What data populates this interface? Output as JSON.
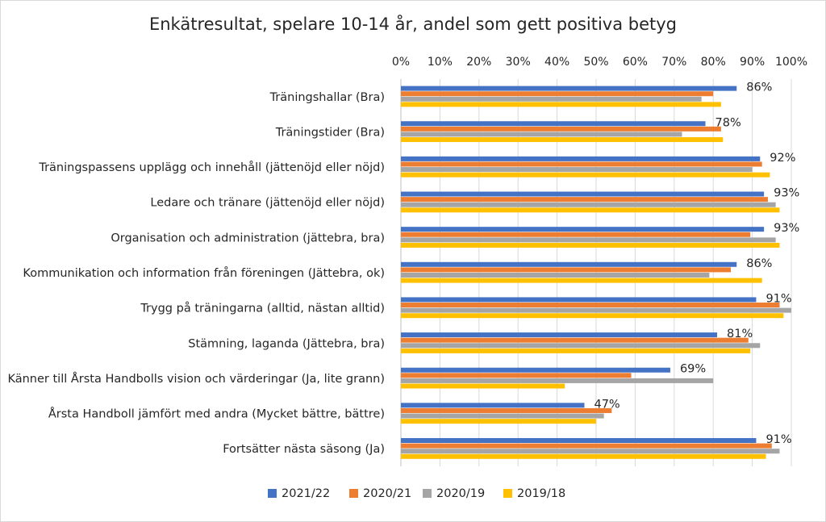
{
  "chart_data": {
    "type": "bar",
    "orientation": "horizontal",
    "title": "Enkätresultat, spelare 10-14 år, andel som gett positiva betyg",
    "xlim": [
      0,
      100
    ],
    "x_ticks": [
      "0%",
      "10%",
      "20%",
      "30%",
      "40%",
      "50%",
      "60%",
      "70%",
      "80%",
      "90%",
      "100%"
    ],
    "grid": true,
    "legend_position": "bottom",
    "categories": [
      "Träningshallar (Bra)",
      "Träningstider (Bra)",
      "Träningspassens upplägg och innehåll (jättenöjd eller nöjd)",
      "Ledare och tränare (jättenöjd eller nöjd)",
      "Organisation och administration (jättebra, bra)",
      "Kommunikation och information från föreningen (Jättebra, ok)",
      "Trygg på träningarna (alltid, nästan alltid)",
      "Stämning, laganda (Jättebra, bra)",
      "Känner till Årsta Handbolls vision och värderingar (Ja, lite grann)",
      "Årsta Handboll jämfört med andra (Mycket bättre, bättre)",
      "Fortsätter nästa säsong (Ja)"
    ],
    "series": [
      {
        "name": "2021/22",
        "color": "#4472c4",
        "values": [
          86,
          78,
          92,
          93,
          93,
          86,
          91,
          81,
          69,
          47,
          91
        ]
      },
      {
        "name": "2020/21",
        "color": "#ed7d31",
        "values": [
          80,
          82,
          92.5,
          94,
          89.5,
          84.5,
          97,
          89,
          59,
          54,
          95
        ]
      },
      {
        "name": "2020/19",
        "color": "#a5a5a5",
        "values": [
          77,
          72,
          90,
          96,
          96,
          79,
          100,
          92,
          80,
          52,
          97
        ]
      },
      {
        "name": "2019/18",
        "color": "#ffc000",
        "values": [
          82,
          82.5,
          94.5,
          97,
          97,
          92.5,
          98,
          89.5,
          42,
          50,
          93.5
        ]
      }
    ],
    "data_labels": [
      "86%",
      "78%",
      "92%",
      "93%",
      "93%",
      "86%",
      "91%",
      "81%",
      "69%",
      "47%",
      "91%"
    ]
  }
}
